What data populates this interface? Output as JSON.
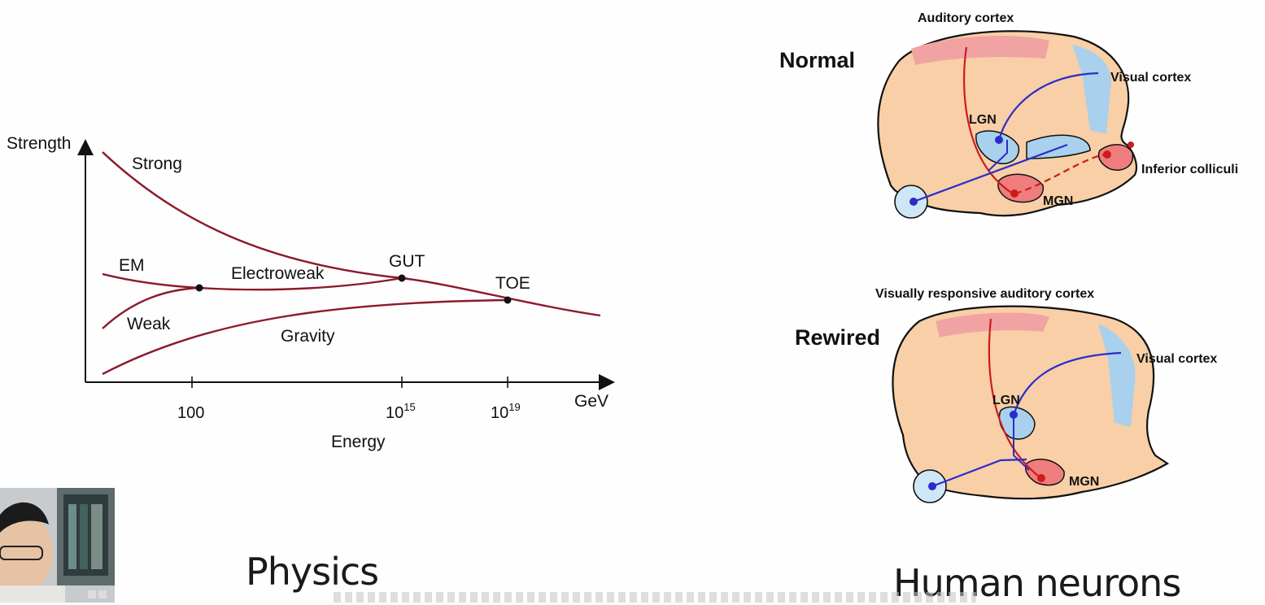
{
  "physics": {
    "y_axis_label": "Strength",
    "x_axis_label": "Energy",
    "x_unit": "GeV",
    "tick_100": "100",
    "tick_1e15_base": "10",
    "tick_1e15_exp": "15",
    "tick_1e19_base": "10",
    "tick_1e19_exp": "19",
    "curve_labels": {
      "strong": "Strong",
      "em": "EM",
      "weak": "Weak",
      "electroweak": "Electroweak",
      "gravity": "Gravity"
    },
    "point_labels": {
      "gut": "GUT",
      "toe": "TOE"
    },
    "caption": "Physics"
  },
  "neuro": {
    "normal": {
      "title": "Normal",
      "auditory_cortex": "Auditory cortex",
      "visual_cortex": "Visual cortex",
      "lgn": "LGN",
      "mgn": "MGN",
      "inferior_colliculi": "Inferior colliculi"
    },
    "rewired": {
      "title": "Rewired",
      "header": "Visually responsive auditory cortex",
      "visual_cortex": "Visual cortex",
      "lgn": "LGN",
      "mgn": "MGN"
    },
    "caption": "Human neurons"
  },
  "colors": {
    "physics_curve": "#8b1a2b",
    "neural_red": "#cc1c1c",
    "neural_blue": "#2c2ccc",
    "brain_fill": "#f8cfa6",
    "cortex_pink": "#f1a3a3",
    "cortex_blue": "#a9d0ec"
  }
}
